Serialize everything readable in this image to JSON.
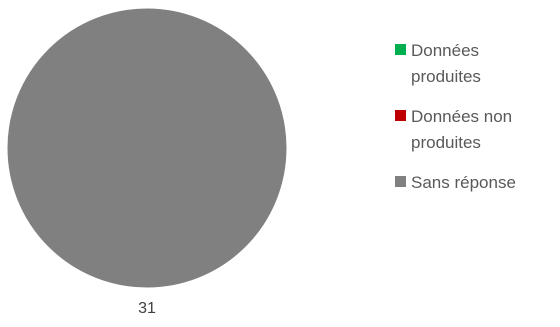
{
  "chart_data": {
    "type": "pie",
    "categories": [
      "Données\nproduites",
      "Données non\nproduites",
      "Sans réponse"
    ],
    "values": [
      0,
      0,
      31
    ],
    "colors": [
      "#00b050",
      "#c00000",
      "#808080"
    ],
    "data_labels": [
      "",
      "",
      "31"
    ],
    "legend": "right"
  }
}
